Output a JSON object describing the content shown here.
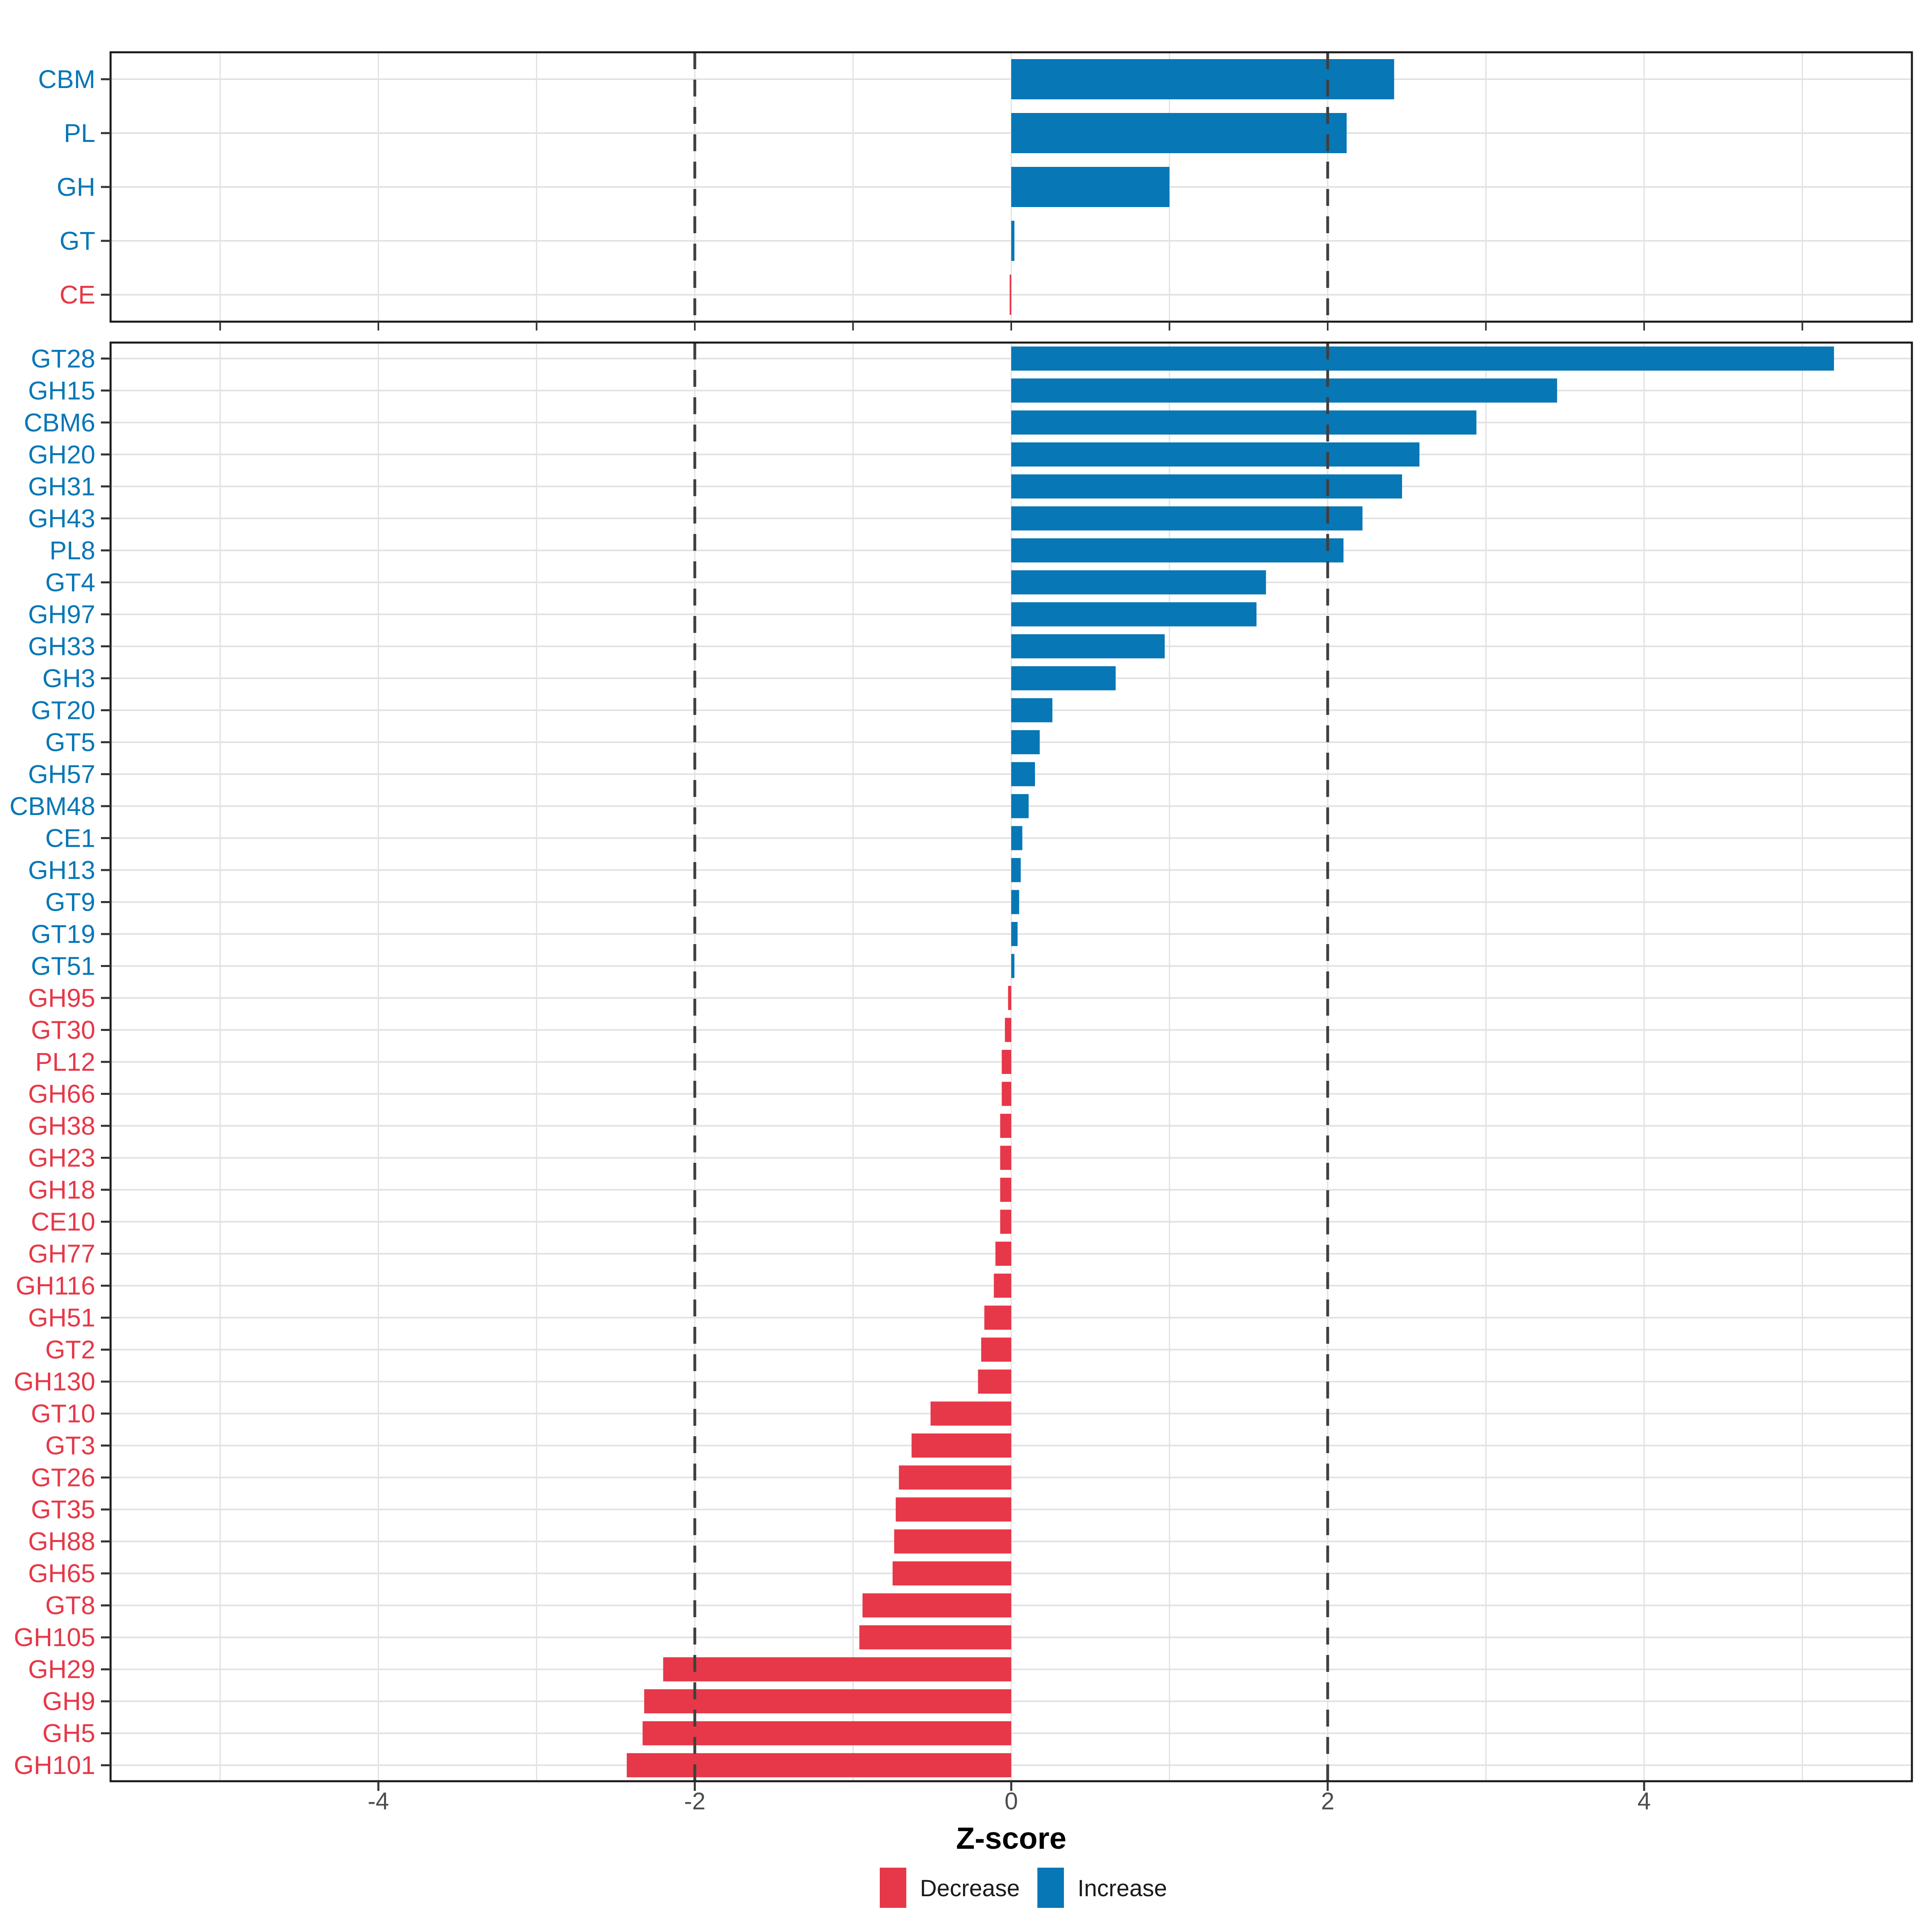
{
  "figure": {
    "xlabel": "Z-score",
    "legend_decrease": "Decrease",
    "legend_increase": "Increase",
    "x_tick_labels": [
      "-4",
      "-2",
      "0",
      "2",
      "4"
    ],
    "x_tick_values": [
      -4,
      -2,
      0,
      2,
      4
    ],
    "minor_grid_values": [
      -5,
      -4,
      -3,
      -2,
      -1,
      0,
      1,
      2,
      3,
      4,
      5
    ],
    "dashed_line_values": [
      -2,
      2
    ],
    "colors": {
      "increase": "#0777B6",
      "decrease": "#E63848",
      "grid": "#E2E2E2",
      "axis_text": "#4D4D4D",
      "dashed": "#3F3F3F",
      "border": "#1A1A1A",
      "tick": "#333333",
      "title_text": "#000000"
    }
  },
  "chart_data": [
    {
      "type": "bar",
      "orientation": "horizontal",
      "panel": "cazyme-classes",
      "title": "",
      "xlabel": "Z-score",
      "xlim": [
        -5.7,
        5.7
      ],
      "grid": "on",
      "legend_position": "bottom",
      "categories": [
        "CBM",
        "PL",
        "GH",
        "GT",
        "CE"
      ],
      "values": [
        2.42,
        2.12,
        1.0,
        0.02,
        -0.01
      ]
    },
    {
      "type": "bar",
      "orientation": "horizontal",
      "panel": "cazyme-families",
      "title": "",
      "xlabel": "Z-score",
      "xlim": [
        -5.7,
        5.7
      ],
      "grid": "on",
      "legend_position": "bottom",
      "categories": [
        "GT28",
        "GH15",
        "CBM6",
        "GH20",
        "GH31",
        "GH43",
        "PL8",
        "GT4",
        "GH97",
        "GH33",
        "GH3",
        "GT20",
        "GT5",
        "GH57",
        "CBM48",
        "CE1",
        "GH13",
        "GT9",
        "GT19",
        "GT51",
        "GH95",
        "GT30",
        "PL12",
        "GH66",
        "GH38",
        "GH23",
        "GH18",
        "CE10",
        "GH77",
        "GH116",
        "GH51",
        "GT2",
        "GH130",
        "GT10",
        "GT3",
        "GT26",
        "GT35",
        "GH88",
        "GH65",
        "GT8",
        "GH105",
        "GH29",
        "GH9",
        "GH5",
        "GH101"
      ],
      "values": [
        5.2,
        3.45,
        2.94,
        2.58,
        2.47,
        2.22,
        2.1,
        1.61,
        1.55,
        0.97,
        0.66,
        0.26,
        0.18,
        0.15,
        0.11,
        0.07,
        0.06,
        0.05,
        0.04,
        0.02,
        -0.02,
        -0.04,
        -0.06,
        -0.06,
        -0.07,
        -0.07,
        -0.07,
        -0.07,
        -0.1,
        -0.11,
        -0.17,
        -0.19,
        -0.21,
        -0.51,
        -0.63,
        -0.71,
        -0.73,
        -0.74,
        -0.75,
        -0.94,
        -0.96,
        -2.2,
        -2.32,
        -2.33,
        -2.43
      ]
    }
  ]
}
